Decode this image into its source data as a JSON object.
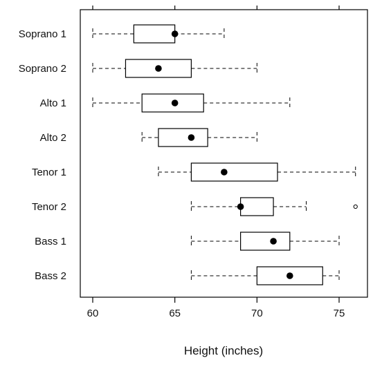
{
  "chart_data": {
    "type": "boxplot",
    "title": "",
    "xlabel": "Height (inches)",
    "ylabel": "",
    "xlim": [
      59.3,
      76.8
    ],
    "xticks": [
      60,
      65,
      70,
      75
    ],
    "grid": false,
    "legend": "none",
    "categories": [
      "Soprano 1",
      "Soprano 2",
      "Alto 1",
      "Alto 2",
      "Tenor 1",
      "Tenor 2",
      "Bass 1",
      "Bass 2"
    ],
    "boxes": [
      {
        "name": "Soprano 1",
        "whisker_low": 60,
        "q1": 62.5,
        "median": 65,
        "q3": 65,
        "whisker_high": 68,
        "outliers": []
      },
      {
        "name": "Soprano 2",
        "whisker_low": 60,
        "q1": 62,
        "median": 64,
        "q3": 66,
        "whisker_high": 70,
        "outliers": []
      },
      {
        "name": "Alto 1",
        "whisker_low": 60,
        "q1": 63,
        "median": 65,
        "q3": 66.75,
        "whisker_high": 72,
        "outliers": []
      },
      {
        "name": "Alto 2",
        "whisker_low": 63,
        "q1": 64,
        "median": 66,
        "q3": 67,
        "whisker_high": 70,
        "outliers": []
      },
      {
        "name": "Tenor 1",
        "whisker_low": 64,
        "q1": 66,
        "median": 68,
        "q3": 71.25,
        "whisker_high": 76,
        "outliers": []
      },
      {
        "name": "Tenor 2",
        "whisker_low": 66,
        "q1": 69,
        "median": 69,
        "q3": 71,
        "whisker_high": 73,
        "outliers": [
          76
        ]
      },
      {
        "name": "Bass 1",
        "whisker_low": 66,
        "q1": 69,
        "median": 71,
        "q3": 72,
        "whisker_high": 75,
        "outliers": []
      },
      {
        "name": "Bass 2",
        "whisker_low": 66,
        "q1": 70,
        "median": 72,
        "q3": 74,
        "whisker_high": 75,
        "outliers": []
      }
    ]
  }
}
